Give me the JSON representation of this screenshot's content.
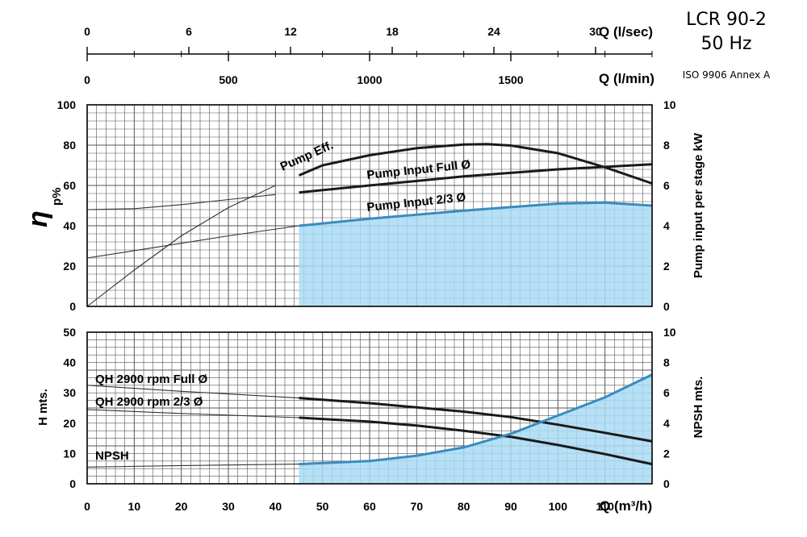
{
  "header": {
    "model": "LCR 90-2",
    "frequency": "50 Hz",
    "standard": "ISO 9906 Annex A"
  },
  "colors": {
    "fill": "#a8dbf5",
    "fill_stroke": "#3a8bbf",
    "heavy_line": "#1a1a1a",
    "thin_line": "#333333",
    "grid": "#555555"
  },
  "chart_data": [
    {
      "type": "line",
      "panel": "efficiency_power",
      "x_unit_label": "Q (m³/h)",
      "y_left_label": "η",
      "y_left_unit": "p%",
      "y_right_label": "Pump input per stage kW",
      "xlim": [
        0,
        120
      ],
      "ylim_left": [
        0,
        100
      ],
      "ylim_right": [
        0,
        10
      ],
      "grid": true,
      "series": [
        {
          "name": "Pump Eff.",
          "axis": "left",
          "weight": "thin",
          "x": [
            0,
            10,
            20,
            30,
            40
          ],
          "y": [
            0,
            18,
            35,
            49,
            60
          ]
        },
        {
          "name": "Pump Eff.",
          "axis": "left",
          "weight": "heavy",
          "x": [
            45,
            50,
            60,
            70,
            80,
            85,
            90,
            100,
            110,
            120
          ],
          "y": [
            65,
            70,
            75,
            78.5,
            80.3,
            80.5,
            79.8,
            76,
            69,
            61
          ]
        },
        {
          "name": "Pump Input Full Ø",
          "axis": "right",
          "weight": "thin",
          "x": [
            0,
            10,
            20,
            30,
            40
          ],
          "y": [
            4.8,
            4.85,
            5.05,
            5.3,
            5.55
          ]
        },
        {
          "name": "Pump Input Full Ø",
          "axis": "right",
          "weight": "heavy",
          "x": [
            45,
            60,
            80,
            100,
            120
          ],
          "y": [
            5.65,
            6.0,
            6.45,
            6.8,
            7.05
          ]
        },
        {
          "name": "Pump Input 2/3 Ø",
          "axis": "right",
          "weight": "thin",
          "x": [
            0,
            15,
            30,
            45
          ],
          "y": [
            2.4,
            2.95,
            3.5,
            4.0
          ]
        },
        {
          "name": "Pump Input 2/3 Ø",
          "axis": "right",
          "weight": "fill",
          "x": [
            45,
            60,
            80,
            100,
            110,
            120
          ],
          "y": [
            4.0,
            4.35,
            4.75,
            5.1,
            5.15,
            5.0
          ]
        }
      ],
      "right_ticks": [
        "0",
        "2",
        "4",
        "6",
        "8",
        "10"
      ],
      "left_ticks": [
        "0",
        "20",
        "40",
        "60",
        "80",
        "100"
      ]
    },
    {
      "type": "line",
      "panel": "head_npsh",
      "xlabel": "Q (m³/h)",
      "y_left_label": "H mts.",
      "y_right_label": "NPSH mts.",
      "xlim": [
        0,
        120
      ],
      "ylim_left": [
        0,
        50
      ],
      "ylim_right": [
        0,
        10
      ],
      "grid": true,
      "series": [
        {
          "name": "QH 2900 rpm Full Ø",
          "axis": "left",
          "weight": "thin",
          "x": [
            0,
            20,
            45
          ],
          "y": [
            32.5,
            30.5,
            28.3
          ]
        },
        {
          "name": "QH 2900 rpm Full Ø",
          "axis": "left",
          "weight": "heavy",
          "x": [
            45,
            60,
            80,
            90,
            100,
            110,
            120
          ],
          "y": [
            28.3,
            26.6,
            23.8,
            22.0,
            19.5,
            16.8,
            14.0
          ]
        },
        {
          "name": "QH 2900 rpm 2/3 Ø",
          "axis": "left",
          "weight": "thin",
          "x": [
            0,
            20,
            45
          ],
          "y": [
            24.5,
            23.2,
            21.8
          ]
        },
        {
          "name": "QH 2900 rpm 2/3 Ø",
          "axis": "left",
          "weight": "heavy",
          "x": [
            45,
            60,
            70,
            80,
            90,
            100,
            110,
            120
          ],
          "y": [
            21.8,
            20.5,
            19.2,
            17.5,
            15.5,
            12.8,
            9.8,
            6.5
          ]
        },
        {
          "name": "NPSH",
          "axis": "right",
          "weight": "thin",
          "x": [
            0,
            20,
            45
          ],
          "y": [
            1.1,
            1.2,
            1.3
          ]
        },
        {
          "name": "NPSH",
          "axis": "right",
          "weight": "fill",
          "x": [
            45,
            60,
            70,
            80,
            90,
            100,
            110,
            120
          ],
          "y": [
            1.3,
            1.5,
            1.85,
            2.4,
            3.3,
            4.5,
            5.7,
            7.2
          ]
        }
      ],
      "x_ticks": [
        "0",
        "10",
        "20",
        "30",
        "40",
        "50",
        "60",
        "70",
        "80",
        "90",
        "100",
        "110"
      ],
      "left_ticks": [
        "0",
        "10",
        "20",
        "30",
        "40",
        "50"
      ],
      "right_ticks": [
        "0",
        "2",
        "4",
        "6",
        "8",
        "10"
      ]
    }
  ],
  "top_axes": {
    "lsec": {
      "label": "Q (l/sec)",
      "ticks": [
        {
          "v": 0,
          "label": "0"
        },
        {
          "v": 6,
          "label": "6"
        },
        {
          "v": 12,
          "label": "12"
        },
        {
          "v": 18,
          "label": "18"
        },
        {
          "v": 24,
          "label": "24"
        },
        {
          "v": 30,
          "label": "30"
        }
      ]
    },
    "lmin": {
      "label": "Q (l/min)",
      "ticks": [
        {
          "v": 0,
          "label": "0"
        },
        {
          "v": 500,
          "label": "500"
        },
        {
          "v": 1000,
          "label": "1000"
        },
        {
          "v": 1500,
          "label": "1500"
        }
      ]
    }
  },
  "labels": {
    "eff": "Pump Eff.",
    "input_full": "Pump Input Full Ø",
    "input_23": "Pump Input 2/3 Ø",
    "qh_full": "QH 2900 rpm Full Ø",
    "qh_23": "QH 2900 rpm 2/3 Ø",
    "npsh": "NPSH",
    "eta": "η",
    "eta_unit": "p%",
    "right_top": "Pump input per stage kW",
    "left_bottom": "H mts.",
    "right_bottom": "NPSH mts.",
    "x_axis": "Q (m³/h)"
  }
}
